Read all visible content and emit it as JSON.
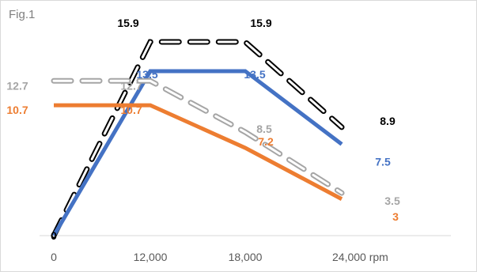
{
  "figure_label": "Fig.1",
  "chart_data": {
    "type": "line",
    "categories": [
      "0",
      "12,000",
      "18,000",
      "24,000 rpm"
    ],
    "x_axis_unit": "rpm",
    "ylim": [
      0,
      17
    ],
    "grid": false,
    "legend": "none",
    "series": [
      {
        "style": "dashed-outline",
        "color": "#000000",
        "values": [
          0,
          15.9,
          15.9,
          8.9
        ],
        "labels": [
          "",
          "15.9",
          "15.9",
          "8.9"
        ]
      },
      {
        "style": "solid",
        "color": "#4472c4",
        "values": [
          0,
          13.5,
          13.5,
          7.5
        ],
        "labels": [
          "",
          "13.5",
          "13.5",
          "7.5"
        ]
      },
      {
        "style": "dashed-outline",
        "color": "#a5a5a5",
        "values": [
          12.7,
          12.7,
          8.5,
          3.5
        ],
        "labels": [
          "12.7",
          "12.7",
          "8.5",
          "3.5"
        ]
      },
      {
        "style": "solid",
        "color": "#ed7d31",
        "values": [
          10.7,
          10.7,
          7.2,
          3
        ],
        "labels": [
          "10.7",
          "10.7",
          "7.2",
          "3"
        ]
      }
    ],
    "origin_label": "0"
  }
}
